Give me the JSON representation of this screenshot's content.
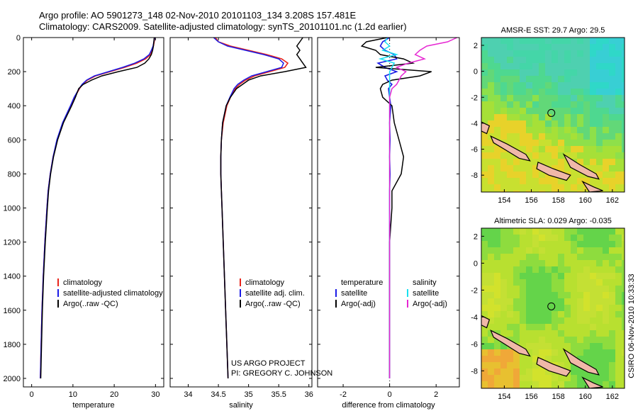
{
  "header": {
    "line1": "Argo profile: AO 5901273_148 02-Nov-2010 20101103_134 3.208S 157.481E",
    "line2": "Climatology: CARS2009. Satellite-adjusted climatology: synTS_20101101.nc (1.2d earlier)"
  },
  "depth_ticks": [
    "0",
    "200",
    "400",
    "600",
    "800",
    "1000",
    "1200",
    "1400",
    "1600",
    "1800",
    "2000"
  ],
  "colors": {
    "climatology": "#e8241b",
    "satellite": "#1a1ae6",
    "argo": "#000000",
    "sat_sal": "#19e0f0",
    "argo_sal": "#e627d2",
    "land": "#f0b8a8"
  },
  "chart_data": [
    {
      "type": "line",
      "name": "temperature",
      "xlabel": "temperature",
      "xlim": [
        -2,
        32
      ],
      "ylim": [
        2050,
        0
      ],
      "xticks": [
        "0",
        "10",
        "20",
        "30"
      ],
      "xtick_values": [
        0,
        10,
        20,
        30
      ],
      "depth": [
        0,
        25,
        50,
        75,
        100,
        125,
        150,
        175,
        200,
        225,
        250,
        275,
        300,
        350,
        400,
        500,
        600,
        700,
        800,
        900,
        1000,
        1200,
        1400,
        1600,
        1800,
        2000
      ],
      "series": [
        {
          "name": "climatology",
          "values": [
            29.8,
            29.7,
            29.5,
            29.2,
            28.8,
            27.6,
            25.5,
            22.5,
            19.0,
            15.5,
            13.5,
            12.3,
            11.6,
            10.4,
            9.5,
            7.6,
            6.2,
            5.2,
            4.5,
            4.0,
            3.7,
            3.2,
            2.8,
            2.5,
            2.3,
            2.1
          ]
        },
        {
          "name": "satellite-adjusted climatology",
          "values": [
            29.8,
            29.6,
            29.4,
            29.0,
            28.5,
            27.2,
            25.0,
            22.0,
            18.6,
            15.2,
            13.3,
            12.2,
            11.5,
            10.3,
            9.4,
            7.5,
            6.1,
            5.2,
            4.5,
            4.0,
            3.7,
            3.2,
            2.8,
            2.5,
            2.3,
            2.1
          ]
        },
        {
          "name": "Argo(..raw -QC)",
          "values": [
            29.7,
            29.6,
            29.5,
            29.3,
            29.0,
            28.4,
            27.4,
            25.5,
            21.0,
            17.0,
            14.5,
            12.5,
            11.4,
            10.6,
            9.7,
            7.7,
            6.3,
            5.3,
            4.6,
            4.1,
            3.8,
            3.3,
            2.9,
            2.6,
            2.4,
            2.2
          ]
        }
      ],
      "legend": [
        "climatology",
        "satellite-adjusted climatology",
        "Argo(..raw -QC)"
      ]
    },
    {
      "type": "line",
      "name": "salinity",
      "xlabel": "salinity",
      "xlim": [
        33.7,
        36.05
      ],
      "ylim": [
        2050,
        0
      ],
      "xticks": [
        "34",
        "34.5",
        "35",
        "35.5",
        "36"
      ],
      "xtick_values": [
        34,
        34.5,
        35,
        35.5,
        36
      ],
      "depth": [
        0,
        25,
        50,
        75,
        100,
        125,
        150,
        175,
        200,
        225,
        250,
        275,
        300,
        350,
        400,
        500,
        600,
        700,
        800,
        900,
        1000,
        1200,
        1400,
        1600,
        1800,
        2000
      ],
      "series": [
        {
          "name": "climatology",
          "values": [
            34.45,
            34.5,
            34.7,
            35.0,
            35.3,
            35.55,
            35.65,
            35.6,
            35.35,
            35.1,
            34.95,
            34.85,
            34.78,
            34.7,
            34.64,
            34.58,
            34.55,
            34.54,
            34.54,
            34.55,
            34.56,
            34.58,
            34.6,
            34.62,
            34.64,
            34.66
          ]
        },
        {
          "name": "satellite adj. clim.",
          "values": [
            34.42,
            34.5,
            34.65,
            34.95,
            35.25,
            35.5,
            35.58,
            35.55,
            35.3,
            35.05,
            34.92,
            34.82,
            34.76,
            34.69,
            34.63,
            34.57,
            34.55,
            34.54,
            34.54,
            34.55,
            34.56,
            34.58,
            34.6,
            34.62,
            34.64,
            34.66
          ]
        },
        {
          "name": "Argo(..raw -QC)",
          "values": [
            35.9,
            35.85,
            35.8,
            35.85,
            35.8,
            35.85,
            35.9,
            35.95,
            35.6,
            35.2,
            35.0,
            34.9,
            34.8,
            34.7,
            34.63,
            34.57,
            34.55,
            34.54,
            34.54,
            34.55,
            34.56,
            34.58,
            34.6,
            34.62,
            34.64,
            34.66
          ]
        }
      ],
      "legend": [
        "climatology",
        "satellite adj. clim.",
        "Argo(..raw -QC)"
      ]
    },
    {
      "type": "line",
      "name": "difference",
      "xlabel": "difference from climatology",
      "xlim": [
        -3.1,
        3.0
      ],
      "ylim": [
        2050,
        0
      ],
      "xticks": [
        "-2",
        "0",
        "2"
      ],
      "xtick_values": [
        -2,
        0,
        2
      ],
      "depth": [
        0,
        25,
        50,
        75,
        100,
        125,
        150,
        175,
        200,
        225,
        250,
        275,
        300,
        350,
        400,
        500,
        600,
        700,
        800,
        900,
        1000,
        1200,
        1400,
        1600,
        1800,
        2000
      ],
      "series": [
        {
          "name": "temperature satellite",
          "values": [
            0,
            -0.3,
            -0.4,
            -0.2,
            0.2,
            0.3,
            -0.5,
            -0.2,
            0.3,
            -0.2,
            -0.1,
            0.1,
            -0.05,
            0,
            0.05,
            0,
            0.02,
            0,
            0.02,
            0,
            0,
            0,
            0,
            0,
            0,
            0
          ]
        },
        {
          "name": "temperature Argo(-adj)",
          "values": [
            -0.1,
            -1.0,
            -1.2,
            -0.6,
            -0.4,
            0.6,
            1.0,
            -0.6,
            1.8,
            1.3,
            0.1,
            -0.3,
            -0.4,
            -0.3,
            0.1,
            0.2,
            0.4,
            0.6,
            0.5,
            0.1,
            0.1,
            0,
            0,
            0,
            0,
            0
          ]
        },
        {
          "name": "salinity satellite",
          "values": [
            -0.1,
            -0.2,
            0,
            -0.3,
            0.3,
            -0.4,
            0.2,
            0.1,
            0,
            0,
            0,
            0,
            0,
            0,
            0,
            0,
            0,
            0,
            0,
            0,
            0,
            0,
            0,
            0,
            0,
            0
          ]
        },
        {
          "name": "salinity Argo(-adj)",
          "values": [
            2.9,
            2.5,
            1.6,
            1.3,
            1.1,
            1.5,
            0.8,
            0.3,
            0.7,
            0.5,
            0.4,
            0.3,
            0.1,
            0,
            0,
            0,
            0,
            0,
            0,
            0,
            0,
            0,
            0,
            0,
            0,
            0
          ]
        }
      ],
      "legend_temp_title": "temperature",
      "legend_sal_title": "salinity",
      "legend": [
        "satellite",
        "Argo(-adj)",
        "satellite",
        "Argo(-adj)"
      ]
    },
    {
      "type": "heatmap",
      "name": "sst-map",
      "title": "AMSR-E SST: 29.7 Argo: 29.5",
      "xticks": [
        "154",
        "156",
        "158",
        "160",
        "162"
      ],
      "yticks": [
        "2",
        "0",
        "-2",
        "-4",
        "-6",
        "-8"
      ],
      "xlim": [
        152.3,
        162.9
      ],
      "ylim": [
        -9.3,
        2.6
      ],
      "argo_position": [
        157.48,
        -3.21
      ]
    },
    {
      "type": "heatmap",
      "name": "sla-map",
      "title": "Altimetric SLA: 0.029 Argo: -0.035",
      "xticks": [
        "154",
        "156",
        "158",
        "160",
        "162"
      ],
      "yticks": [
        "2",
        "0",
        "-2",
        "-4",
        "-6",
        "-8"
      ],
      "xlim": [
        152.3,
        162.9
      ],
      "ylim": [
        -9.3,
        2.6
      ],
      "argo_position": [
        157.48,
        -3.21
      ]
    }
  ],
  "credits": {
    "line1": "US ARGO PROJECT",
    "line2": "PI: GREGORY C. JOHNSON"
  },
  "timestamp": "CSIRO 06-Nov-2010 10:33:33"
}
